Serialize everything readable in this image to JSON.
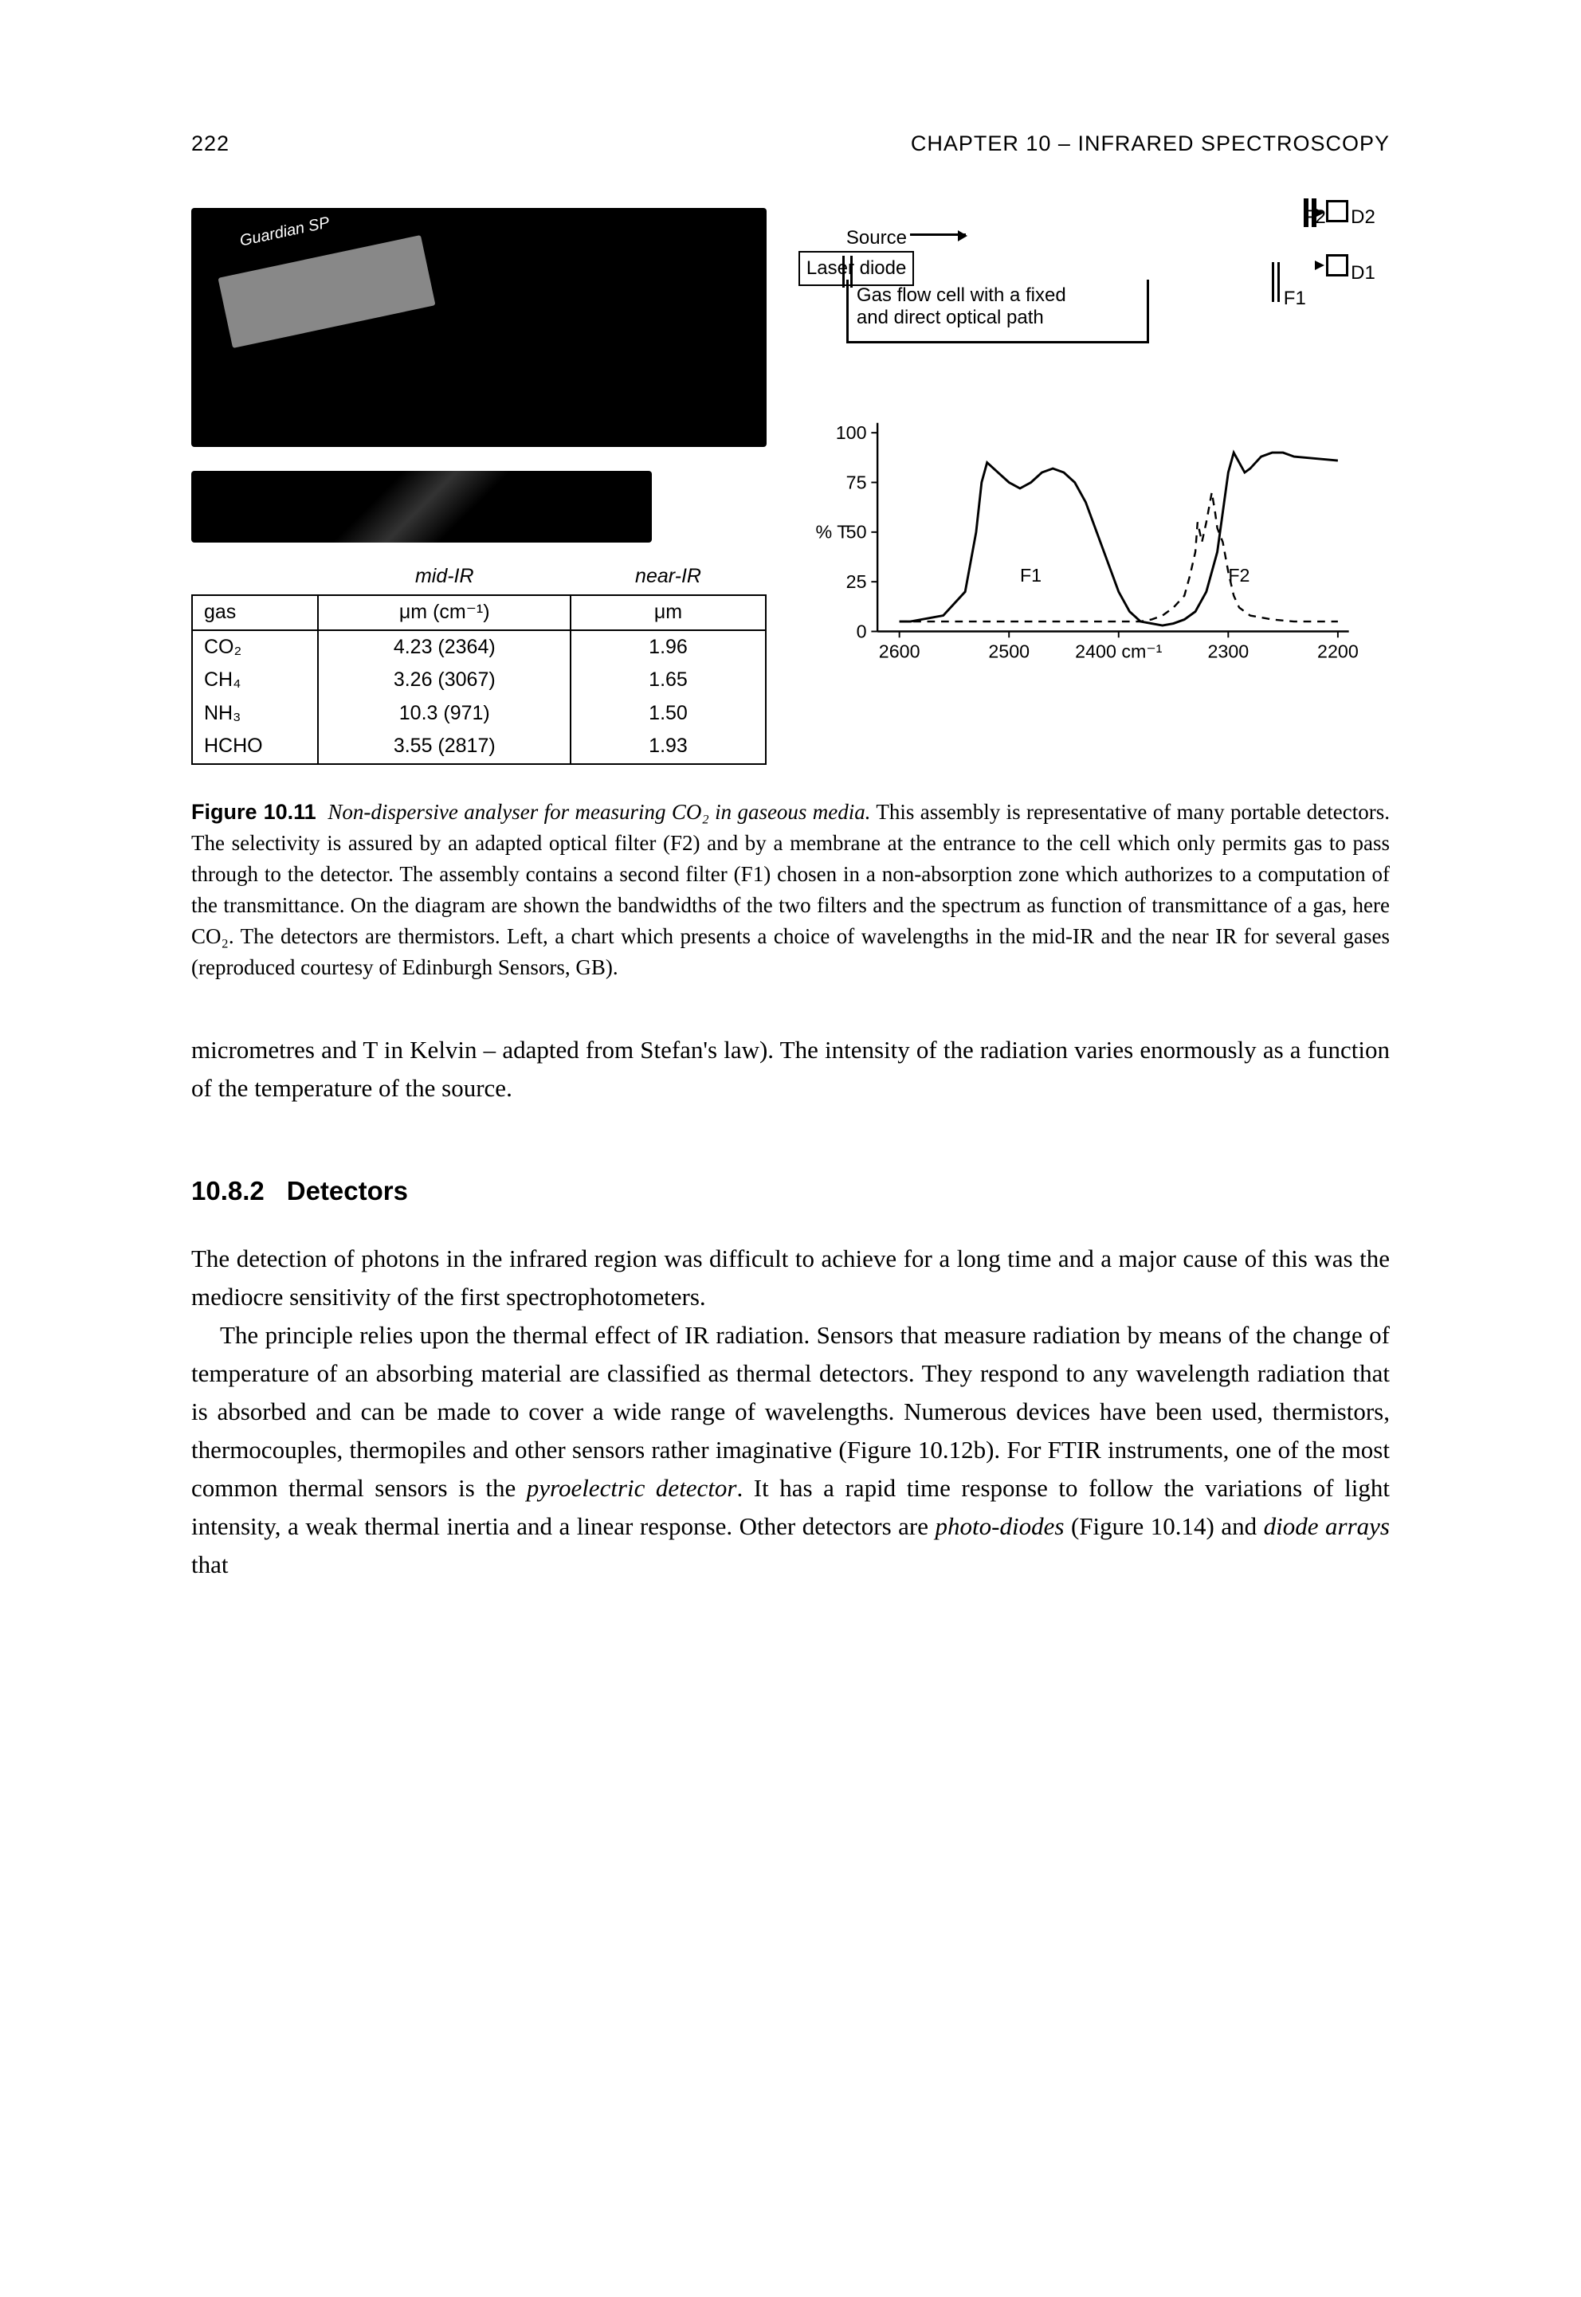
{
  "header": {
    "page_number": "222",
    "chapter_title": "CHAPTER 10 – INFRARED SPECTROSCOPY"
  },
  "figure": {
    "device_brand": "Guardian SP",
    "optical_diagram": {
      "source_label": "Source",
      "laser_label": "Laser diode",
      "cell_label_line1": "Gas flow cell with a fixed",
      "cell_label_line2": "and direct optical path",
      "F1": "F1",
      "F2": "F2",
      "D1": "D1",
      "D2": "D2"
    },
    "gas_table": {
      "col_headers": [
        "",
        "mid-IR",
        "near-IR"
      ],
      "unit_row": [
        "gas",
        "μm (cm⁻¹)",
        "μm"
      ],
      "rows": [
        [
          "CO₂",
          "4.23 (2364)",
          "1.96"
        ],
        [
          "CH₄",
          "3.26 (3067)",
          "1.65"
        ],
        [
          "NH₃",
          "10.3 (971)",
          "1.50"
        ],
        [
          "HCHO",
          "3.55 (2817)",
          "1.93"
        ]
      ]
    },
    "spectrum": {
      "y_label": "% T",
      "y_ticks": [
        0,
        25,
        50,
        75,
        100
      ],
      "x_ticks": [
        2600,
        2500,
        2400,
        2300,
        2200
      ],
      "x_unit": "cm⁻¹",
      "annotations": {
        "F1": "F1",
        "F2": "F2"
      },
      "solid_curve": [
        [
          2600,
          5
        ],
        [
          2590,
          5
        ],
        [
          2560,
          8
        ],
        [
          2540,
          20
        ],
        [
          2530,
          50
        ],
        [
          2525,
          75
        ],
        [
          2520,
          85
        ],
        [
          2510,
          80
        ],
        [
          2500,
          75
        ],
        [
          2490,
          72
        ],
        [
          2480,
          75
        ],
        [
          2470,
          80
        ],
        [
          2460,
          82
        ],
        [
          2450,
          80
        ],
        [
          2440,
          75
        ],
        [
          2430,
          65
        ],
        [
          2420,
          50
        ],
        [
          2410,
          35
        ],
        [
          2400,
          20
        ],
        [
          2390,
          10
        ],
        [
          2380,
          5
        ],
        [
          2370,
          4
        ],
        [
          2360,
          3
        ],
        [
          2350,
          4
        ],
        [
          2340,
          6
        ],
        [
          2330,
          10
        ],
        [
          2320,
          20
        ],
        [
          2310,
          40
        ],
        [
          2305,
          60
        ],
        [
          2300,
          80
        ],
        [
          2295,
          90
        ],
        [
          2290,
          85
        ],
        [
          2285,
          80
        ],
        [
          2280,
          82
        ],
        [
          2275,
          85
        ],
        [
          2270,
          88
        ],
        [
          2260,
          90
        ],
        [
          2250,
          90
        ],
        [
          2240,
          88
        ],
        [
          2220,
          87
        ],
        [
          2200,
          86
        ]
      ],
      "dashed_curve": [
        [
          2600,
          5
        ],
        [
          2440,
          5
        ],
        [
          2400,
          5
        ],
        [
          2380,
          5
        ],
        [
          2370,
          6
        ],
        [
          2360,
          8
        ],
        [
          2350,
          12
        ],
        [
          2340,
          18
        ],
        [
          2335,
          28
        ],
        [
          2330,
          40
        ],
        [
          2328,
          55
        ],
        [
          2326,
          50
        ],
        [
          2324,
          45
        ],
        [
          2320,
          55
        ],
        [
          2315,
          70
        ],
        [
          2312,
          60
        ],
        [
          2310,
          52
        ],
        [
          2305,
          45
        ],
        [
          2300,
          30
        ],
        [
          2295,
          18
        ],
        [
          2290,
          12
        ],
        [
          2280,
          8
        ],
        [
          2260,
          6
        ],
        [
          2240,
          5
        ],
        [
          2200,
          5
        ]
      ],
      "colors": {
        "axis": "#000000",
        "solid": "#000000",
        "dashed": "#000000",
        "bg": "#ffffff"
      },
      "ylim": [
        0,
        105
      ],
      "xlim": [
        2620,
        2190
      ]
    },
    "caption": {
      "label": "Figure 10.11",
      "title": "Non-dispersive analyser for measuring CO₂ in gaseous media.",
      "body": "This assembly is representative of many portable detectors. The selectivity is assured by an adapted optical filter (F2) and by a membrane at the entrance to the cell which only permits gas to pass through to the detector. The assembly contains a second filter (F1) chosen in a non-absorption zone which authorizes to a computation of the transmittance. On the diagram are shown the bandwidths of the two filters and the spectrum as function of transmittance of a gas, here CO₂. The detectors are thermistors. Left, a chart which presents a choice of wavelengths in the mid-IR and the near IR for several gases (reproduced courtesy of Edinburgh Sensors, GB)."
    }
  },
  "paragraphs": {
    "continuation": "micrometres and T in Kelvin – adapted from Stefan's law). The intensity of the radiation varies enormously as a function of the temperature of the source.",
    "section": {
      "number": "10.8.2",
      "title": "Detectors"
    },
    "p1": "The detection of photons in the infrared region was difficult to achieve for a long time and a major cause of this was the mediocre sensitivity of the first spectrophotometers.",
    "p2_a": "The principle relies upon the thermal effect of IR radiation. Sensors that measure radiation by means of the change of temperature of an absorbing material are classified as thermal detectors. They respond to any wavelength radiation that is absorbed and can be made to cover a wide range of wavelengths. Numerous devices have been used, thermistors, thermocouples, thermopiles and other sensors rather imaginative (Figure 10.12b). For FTIR instruments, one of the most common thermal sensors is the ",
    "p2_term1": "pyroelectric detector",
    "p2_b": ". It has a rapid time response to follow the variations of light intensity, a weak thermal inertia and a linear response. Other detectors are ",
    "p2_term2": "photo-diodes",
    "p2_c": " (Figure 10.14) and ",
    "p2_term3": "diode arrays",
    "p2_d": " that"
  }
}
